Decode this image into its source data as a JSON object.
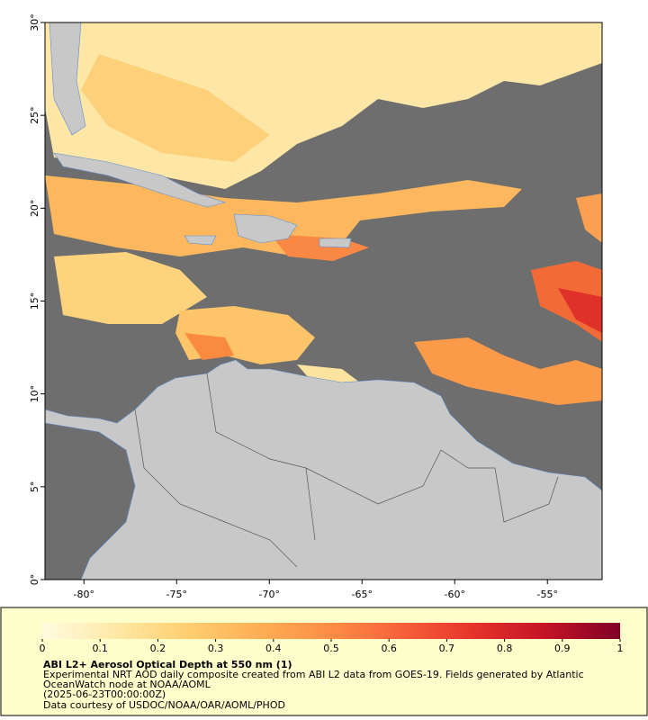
{
  "map": {
    "xlim": [
      -82.1,
      -52.05
    ],
    "ylim": [
      0,
      30
    ],
    "xticks": [
      {
        "value": -80,
        "label": "-80°"
      },
      {
        "value": -75,
        "label": "-75°"
      },
      {
        "value": -70,
        "label": "-70°"
      },
      {
        "value": -65,
        "label": "-65°"
      },
      {
        "value": -60,
        "label": "-60°"
      },
      {
        "value": -55,
        "label": "-55°"
      }
    ],
    "yticks": [
      {
        "value": 0,
        "label": "0°"
      },
      {
        "value": 5,
        "label": "5°"
      },
      {
        "value": 10,
        "label": "10°"
      },
      {
        "value": 15,
        "label": "15°"
      },
      {
        "value": 20,
        "label": "20°"
      },
      {
        "value": 25,
        "label": "25°"
      },
      {
        "value": 30,
        "label": "30°"
      }
    ]
  },
  "colorbar": {
    "lim": [
      0,
      1
    ],
    "ticks": [
      0,
      0.1,
      0.2,
      0.3,
      0.4,
      0.5,
      0.6,
      0.7,
      0.8,
      0.9,
      1
    ],
    "colors": [
      "#fffbe0",
      "#ffe9a8",
      "#ffcf70",
      "#fdae55",
      "#fc8d45",
      "#f7603a",
      "#e5322a",
      "#c21326",
      "#800026"
    ]
  },
  "caption": {
    "title": "ABI L2+ Aerosol Optical Depth at 550 nm (1)",
    "lines": [
      "Experimental NRT AOD daily composite created from ABI L2 data from GOES-19. Fields generated by Atlantic",
      "OceanWatch node at NOAA/AOML",
      "(2025-06-23T00:00:00Z)",
      "Data courtesy of USDOC/NOAA/OAR/AOML/PHOD"
    ]
  }
}
